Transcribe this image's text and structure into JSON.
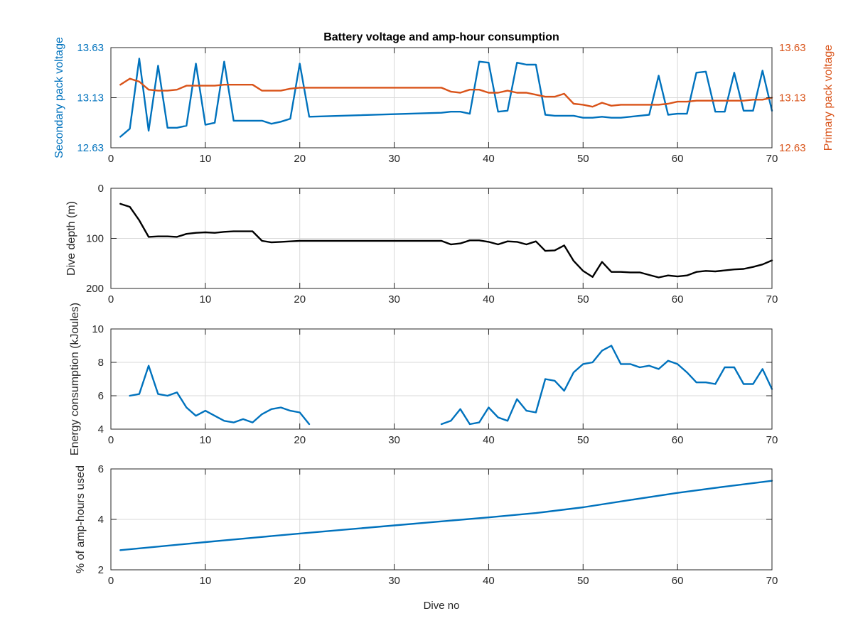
{
  "figure": {
    "title": "Battery voltage and amp-hour consumption",
    "xlabel": "Dive no"
  },
  "colors": {
    "blue": "#0072bd",
    "orange": "#d95319",
    "black": "#000000",
    "grid": "#d9d9d9",
    "axis": "#262626"
  },
  "chart_data": [
    {
      "type": "line",
      "name": "voltage",
      "xlim": [
        0,
        70
      ],
      "xticks": [
        0,
        10,
        20,
        30,
        40,
        50,
        60,
        70
      ],
      "ylim": [
        12.63,
        13.63
      ],
      "yticks": [
        12.63,
        13.13,
        13.63
      ],
      "ylabel": "Secondary pack voltage",
      "y2label": "Primary pack voltage",
      "y2lim": [
        12.63,
        13.63
      ],
      "y2ticks": [
        12.63,
        13.13,
        13.63
      ],
      "grid": true,
      "series": [
        {
          "axis": "left",
          "color": "blue",
          "x": [
            1,
            2,
            3,
            4,
            5,
            6,
            7,
            8,
            9,
            10,
            11,
            12,
            13,
            14,
            15,
            16,
            17,
            18,
            19,
            20,
            21,
            35,
            36,
            37,
            38,
            39,
            40,
            41,
            42,
            43,
            44,
            45,
            46,
            47,
            48,
            49,
            50,
            51,
            52,
            53,
            54,
            55,
            56,
            57,
            58,
            59,
            60,
            61,
            62,
            63,
            64,
            65,
            66,
            67,
            68,
            69,
            70
          ],
          "y": [
            12.74,
            12.82,
            13.52,
            12.8,
            13.45,
            12.83,
            12.83,
            12.85,
            13.47,
            12.86,
            12.88,
            13.49,
            12.9,
            12.9,
            12.9,
            12.9,
            12.87,
            12.89,
            12.92,
            13.47,
            12.94,
            12.98,
            12.99,
            12.99,
            12.97,
            13.49,
            13.48,
            12.99,
            13.0,
            13.48,
            13.46,
            13.46,
            12.96,
            12.95,
            12.95,
            12.95,
            12.93,
            12.93,
            12.94,
            12.93,
            12.93,
            12.94,
            12.95,
            12.96,
            13.35,
            12.96,
            12.97,
            12.97,
            13.38,
            13.39,
            12.99,
            12.99,
            13.38,
            13.0,
            13.0,
            13.4,
            13.0
          ]
        },
        {
          "axis": "right",
          "color": "orange",
          "x": [
            1,
            2,
            3,
            4,
            5,
            6,
            7,
            8,
            9,
            10,
            11,
            12,
            13,
            14,
            15,
            16,
            17,
            18,
            19,
            20,
            21,
            22,
            23,
            24,
            25,
            26,
            27,
            28,
            29,
            30,
            31,
            32,
            33,
            34,
            35,
            36,
            37,
            38,
            39,
            40,
            41,
            42,
            43,
            44,
            45,
            46,
            47,
            48,
            49,
            50,
            51,
            52,
            53,
            54,
            55,
            56,
            57,
            58,
            59,
            60,
            61,
            62,
            63,
            64,
            65,
            66,
            67,
            68,
            69,
            70
          ],
          "y": [
            13.26,
            13.32,
            13.29,
            13.21,
            13.2,
            13.2,
            13.21,
            13.25,
            13.25,
            13.25,
            13.25,
            13.26,
            13.26,
            13.26,
            13.26,
            13.2,
            13.2,
            13.2,
            13.22,
            13.23,
            13.23,
            13.23,
            13.23,
            13.23,
            13.23,
            13.23,
            13.23,
            13.23,
            13.23,
            13.23,
            13.23,
            13.23,
            13.23,
            13.23,
            13.23,
            13.19,
            13.18,
            13.21,
            13.21,
            13.18,
            13.18,
            13.2,
            13.18,
            13.18,
            13.16,
            13.14,
            13.14,
            13.17,
            13.07,
            13.06,
            13.04,
            13.08,
            13.05,
            13.06,
            13.06,
            13.06,
            13.06,
            13.06,
            13.07,
            13.09,
            13.09,
            13.1,
            13.1,
            13.1,
            13.1,
            13.1,
            13.1,
            13.11,
            13.11,
            13.13
          ]
        }
      ]
    },
    {
      "type": "line",
      "name": "depth",
      "xlim": [
        0,
        70
      ],
      "xticks": [
        0,
        10,
        20,
        30,
        40,
        50,
        60,
        70
      ],
      "ylim": [
        0,
        200
      ],
      "yticks": [
        0,
        100,
        200
      ],
      "yreverse": true,
      "ylabel": "Dive depth (m)",
      "grid": true,
      "series": [
        {
          "color": "black",
          "x": [
            1,
            2,
            3,
            4,
            5,
            6,
            7,
            8,
            9,
            10,
            11,
            12,
            13,
            14,
            15,
            16,
            17,
            18,
            19,
            20,
            21,
            22,
            23,
            24,
            25,
            26,
            27,
            28,
            29,
            30,
            31,
            32,
            33,
            34,
            35,
            36,
            37,
            38,
            39,
            40,
            41,
            42,
            43,
            44,
            45,
            46,
            47,
            48,
            49,
            50,
            51,
            52,
            53,
            54,
            55,
            56,
            57,
            58,
            59,
            60,
            61,
            62,
            63,
            64,
            65,
            66,
            67,
            68,
            69,
            70
          ],
          "y": [
            31,
            37,
            64,
            97,
            96,
            96,
            97,
            91,
            89,
            88,
            89,
            87,
            86,
            86,
            86,
            105,
            108,
            107,
            106,
            105,
            105,
            105,
            105,
            105,
            105,
            105,
            105,
            105,
            105,
            105,
            105,
            105,
            105,
            105,
            105,
            112,
            110,
            104,
            104,
            107,
            112,
            106,
            107,
            112,
            106,
            125,
            124,
            114,
            145,
            165,
            177,
            147,
            167,
            167,
            168,
            168,
            173,
            178,
            174,
            176,
            174,
            167,
            165,
            166,
            164,
            162,
            161,
            157,
            152,
            144
          ]
        }
      ]
    },
    {
      "type": "line",
      "name": "energy",
      "xlim": [
        0,
        70
      ],
      "xticks": [
        0,
        10,
        20,
        30,
        40,
        50,
        60,
        70
      ],
      "ylim": [
        4,
        10
      ],
      "yticks": [
        4,
        6,
        8,
        10
      ],
      "ylabel": "Energy consumption (kJoules)",
      "grid": true,
      "series": [
        {
          "color": "blue",
          "x": [
            2,
            3,
            4,
            5,
            6,
            7,
            8,
            9,
            10,
            11,
            12,
            13,
            14,
            15,
            16,
            17,
            18,
            19,
            20,
            21
          ],
          "y": [
            6.0,
            6.1,
            7.8,
            6.1,
            6.0,
            6.2,
            5.3,
            4.8,
            5.1,
            4.8,
            4.5,
            4.4,
            4.6,
            4.4,
            4.9,
            5.2,
            5.3,
            5.1,
            5.0,
            4.3
          ]
        },
        {
          "color": "blue",
          "x": [
            35,
            36,
            37,
            38,
            39,
            40,
            41,
            42,
            43,
            44,
            45,
            46,
            47,
            48,
            49,
            50,
            51,
            52,
            53,
            54,
            55,
            56,
            57,
            58,
            59,
            60,
            61,
            62,
            63,
            64,
            65,
            66,
            67,
            68,
            69,
            70
          ],
          "y": [
            4.3,
            4.5,
            5.2,
            4.3,
            4.4,
            5.3,
            4.7,
            4.5,
            5.8,
            5.1,
            5.0,
            7.0,
            6.9,
            6.3,
            7.4,
            7.9,
            8.0,
            8.7,
            9.0,
            7.9,
            7.9,
            7.7,
            7.8,
            7.6,
            8.1,
            7.9,
            7.4,
            6.8,
            6.8,
            6.7,
            7.7,
            7.7,
            6.7,
            6.7,
            7.6,
            6.4
          ]
        }
      ]
    },
    {
      "type": "line",
      "name": "amphours",
      "xlim": [
        0,
        70
      ],
      "xticks": [
        0,
        10,
        20,
        30,
        40,
        50,
        60,
        70
      ],
      "ylim": [
        2,
        6
      ],
      "yticks": [
        2,
        4,
        6
      ],
      "ylabel": "% of amp-hours used",
      "xlabel": "Dive no",
      "grid": true,
      "series": [
        {
          "color": "blue",
          "x": [
            1,
            5,
            10,
            15,
            20,
            25,
            30,
            35,
            40,
            45,
            50,
            55,
            60,
            65,
            70
          ],
          "y": [
            2.78,
            2.92,
            3.1,
            3.27,
            3.44,
            3.6,
            3.76,
            3.92,
            4.08,
            4.25,
            4.48,
            4.77,
            5.05,
            5.3,
            5.53
          ]
        }
      ]
    }
  ]
}
